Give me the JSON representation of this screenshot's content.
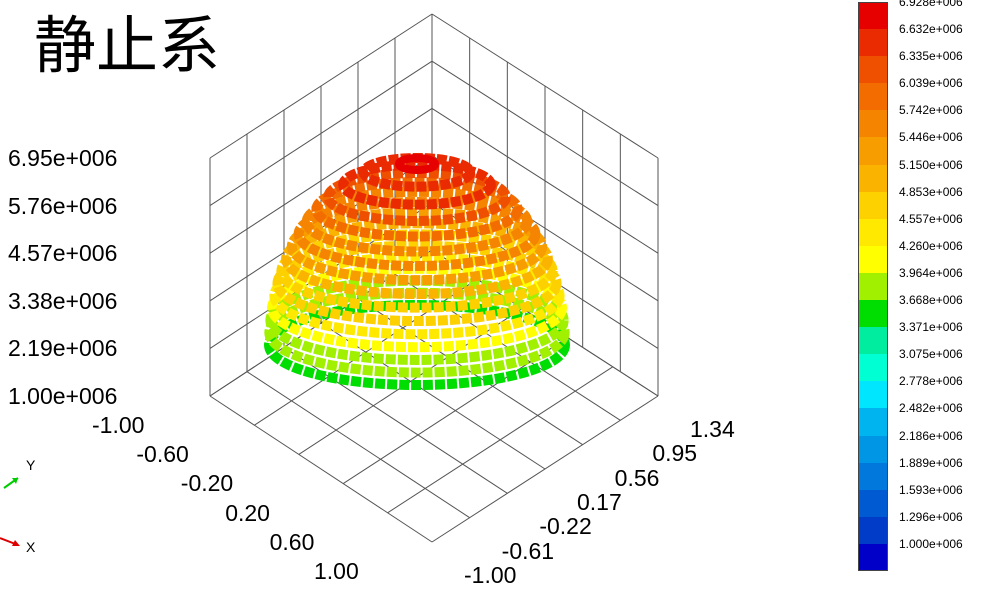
{
  "title": "静止系",
  "chart_data": {
    "type": "surface3d",
    "title": "静止系",
    "z_ticks": [
      "6.95e+006",
      "5.76e+006",
      "4.57e+006",
      "3.38e+006",
      "2.19e+006",
      "1.00e+006"
    ],
    "x_ticks": [
      "-1.00",
      "-0.60",
      "-0.20",
      "0.20",
      "0.60",
      "1.00"
    ],
    "y_ticks": [
      "-1.00",
      "-0.61",
      "-0.22",
      "0.17",
      "0.56",
      "0.95",
      "1.34"
    ],
    "zlim": [
      1000000,
      6950000
    ],
    "xlim": [
      -1.0,
      1.0
    ],
    "ylim": [
      -1.0,
      1.34
    ],
    "grid": true,
    "surface": "dome",
    "surface_value_range": [
      3668000,
      6928000
    ],
    "colorbar": {
      "placement": "right",
      "labels": [
        "6.928e+006",
        "6.632e+006",
        "6.335e+006",
        "6.039e+006",
        "5.742e+006",
        "5.446e+006",
        "5.150e+006",
        "4.853e+006",
        "4.557e+006",
        "4.260e+006",
        "3.964e+006",
        "3.668e+006",
        "3.371e+006",
        "3.075e+006",
        "2.778e+006",
        "2.482e+006",
        "2.186e+006",
        "1.889e+006",
        "1.593e+006",
        "1.296e+006",
        "1.000e+006"
      ],
      "colors": [
        "#e60000",
        "#ea2a00",
        "#ef5000",
        "#f26c00",
        "#f58400",
        "#f89d00",
        "#fab400",
        "#fdd000",
        "#ffe900",
        "#ffff00",
        "#a0f000",
        "#00dd00",
        "#00eda0",
        "#00ffd2",
        "#00e6ff",
        "#00b4f0",
        "#0096e6",
        "#0078dc",
        "#005ad2",
        "#003cc8",
        "#0000c8"
      ]
    },
    "axis_widget": {
      "y_label": "Y",
      "x_label": "X"
    }
  }
}
